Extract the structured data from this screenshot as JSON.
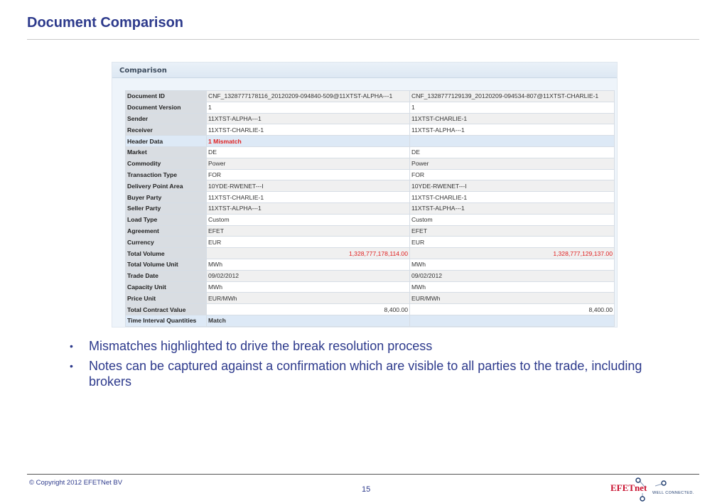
{
  "slide": {
    "title": "Document Comparison",
    "page_number": "15"
  },
  "panel": {
    "title": "Comparison"
  },
  "comparison": {
    "rows": [
      {
        "label": "Document ID",
        "left": "CNF_1328777178116_20120209-094840-509@11XTST-ALPHA---1",
        "right": "CNF_1328777129139_20120209-094534-807@11XTST-CHARLIE-1"
      },
      {
        "label": "Document Version",
        "left": "1",
        "right": "1"
      },
      {
        "label": "Sender",
        "left": "11XTST-ALPHA---1",
        "right": "11XTST-CHARLIE-1"
      },
      {
        "label": "Receiver",
        "left": "11XTST-CHARLIE-1",
        "right": "11XTST-ALPHA---1"
      },
      {
        "label": "Header Data",
        "left": "1 Mismatch",
        "right": ""
      },
      {
        "label": "Market",
        "left": "DE",
        "right": "DE"
      },
      {
        "label": "Commodity",
        "left": "Power",
        "right": "Power"
      },
      {
        "label": "Transaction Type",
        "left": "FOR",
        "right": "FOR"
      },
      {
        "label": "Delivery Point Area",
        "left": "10YDE-RWENET---I",
        "right": "10YDE-RWENET---I"
      },
      {
        "label": "Buyer Party",
        "left": "11XTST-CHARLIE-1",
        "right": "11XTST-CHARLIE-1"
      },
      {
        "label": "Seller Party",
        "left": "11XTST-ALPHA---1",
        "right": "11XTST-ALPHA---1"
      },
      {
        "label": "Load Type",
        "left": "Custom",
        "right": "Custom"
      },
      {
        "label": "Agreement",
        "left": "EFET",
        "right": "EFET"
      },
      {
        "label": "Currency",
        "left": "EUR",
        "right": "EUR"
      },
      {
        "label": "Total Volume",
        "left": "1,328,777,178,114.00",
        "right": "1,328,777,129,137.00"
      },
      {
        "label": "Total Volume Unit",
        "left": "MWh",
        "right": "MWh"
      },
      {
        "label": "Trade Date",
        "left": "09/02/2012",
        "right": "09/02/2012"
      },
      {
        "label": "Capacity Unit",
        "left": "MWh",
        "right": "MWh"
      },
      {
        "label": "Price Unit",
        "left": "EUR/MWh",
        "right": "EUR/MWh"
      },
      {
        "label": "Total Contract Value",
        "left": "8,400.00",
        "right": "8,400.00"
      },
      {
        "label": "Time Interval Quantities",
        "left": "Match",
        "right": ""
      }
    ]
  },
  "bullets": [
    "Mismatches highlighted to drive the break resolution process",
    "Notes can be captured against a confirmation which are visible to all parties to the trade, including brokers"
  ],
  "footer": {
    "copyright": "© Copyright 2012 EFETNet BV",
    "logo_text": "EFETnet",
    "logo_tagline": "WELL CONNECTED."
  },
  "colors": {
    "title": "#2d3a8c",
    "mismatch": "#e02020",
    "logo_red": "#c8102e",
    "logo_navy": "#1f3c6e"
  }
}
